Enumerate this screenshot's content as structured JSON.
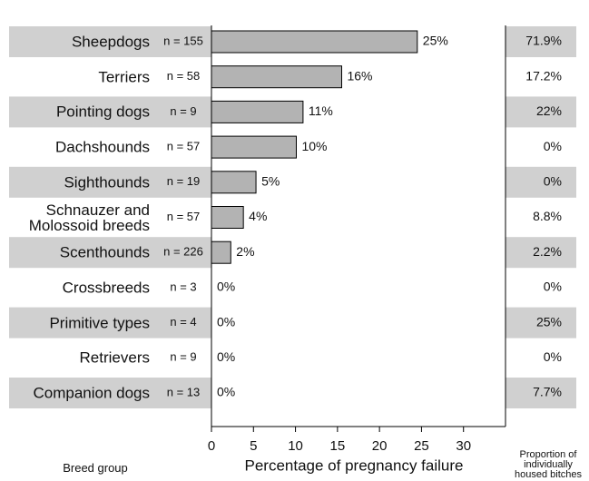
{
  "chart_data": {
    "type": "bar",
    "orientation": "horizontal",
    "categories": [
      "Sheepdogs",
      "Terriers",
      "Pointing dogs",
      "Dachshounds",
      "Sighthounds",
      "Schnauzer and Molossoid breeds",
      "Scenthounds",
      "Crossbreeds",
      "Primitive types",
      "Retrievers",
      "Companion dogs"
    ],
    "n_labels": [
      "n = 155",
      "n = 58",
      "n = 9",
      "n = 57",
      "n = 19",
      "n = 57",
      "n = 226",
      "n = 3",
      "n = 4",
      "n = 9",
      "n = 13"
    ],
    "values": [
      24.5,
      15.5,
      10.9,
      10.1,
      5.3,
      3.8,
      2.3,
      0,
      0,
      0,
      0
    ],
    "value_labels": [
      "25%",
      "16%",
      "11%",
      "10%",
      "5%",
      "4%",
      "2%",
      "0%",
      "0%",
      "0%",
      "0%"
    ],
    "color": "#b3b3b3",
    "proportions": [
      "71.9%",
      "17.2%",
      "22%",
      "0%",
      "0%",
      "8.8%",
      "2.2%",
      "0%",
      "25%",
      "0%",
      "7.7%"
    ],
    "xlim": [
      0,
      35
    ],
    "xticks": [
      0,
      5,
      10,
      15,
      20,
      25,
      30
    ],
    "xlabel": "Percentage of pregnancy failure",
    "category_axis_label": "Breed group",
    "proportion_label": "Proportion of individually housed bitches"
  }
}
